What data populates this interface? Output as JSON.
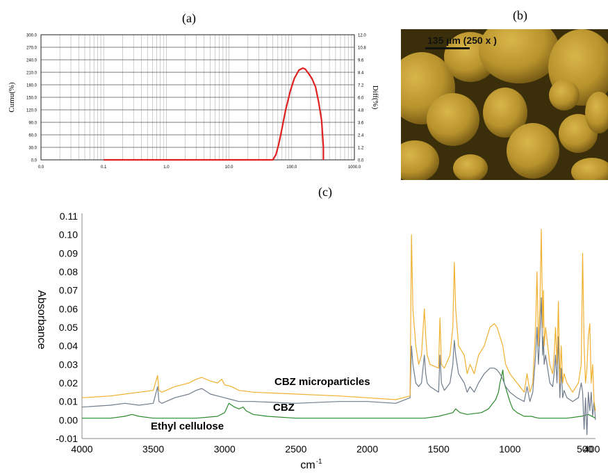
{
  "panels": {
    "a": "(a)",
    "b": "(b)",
    "c": "(c)"
  },
  "micrograph": {
    "scale_label": "135 µm (250 x )"
  },
  "colors": {
    "psd_curve": "#e02020",
    "cbz_micro": "#f0b030",
    "cbz": "#707c8c",
    "ethyl_cellulose": "#2a8a2a"
  },
  "chart_data": [
    {
      "type": "line",
      "title": "",
      "xlabel": "",
      "ylabel": "Cumu(%)",
      "ylabel_right": "Diff(%)",
      "x_scale": "log",
      "x_ticks": [
        "0.0",
        "0.1",
        "1.0",
        "10.0",
        "100.0",
        "1000.0"
      ],
      "y_ticks_left": [
        "0.0",
        "30.0",
        "60.0",
        "90.0",
        "120.0",
        "150.0",
        "180.0",
        "210.0",
        "240.0",
        "270.0",
        "300.0"
      ],
      "y_ticks_right": [
        "0.0",
        "1.2",
        "2.4",
        "3.6",
        "4.8",
        "6.0",
        "7.2",
        "8.4",
        "9.6",
        "10.8",
        "12.0"
      ],
      "ylim_right": [
        0,
        12
      ],
      "grid": true,
      "series": [
        {
          "axis": "right",
          "x": [
            0.1,
            1,
            10,
            50,
            56,
            62,
            70,
            80,
            95,
            110,
            130,
            150,
            165,
            185,
            210,
            240,
            270,
            300,
            320,
            320
          ],
          "y": [
            0,
            0,
            0,
            0,
            0.5,
            1.5,
            3.0,
            4.8,
            6.6,
            7.8,
            8.6,
            8.8,
            8.7,
            8.3,
            7.8,
            7.0,
            5.5,
            3.8,
            1.2,
            0
          ]
        }
      ]
    },
    {
      "type": "line",
      "title": "",
      "xlabel": "cm-1",
      "ylabel": "Absorbance",
      "xlim": [
        4000,
        400
      ],
      "ylim": [
        -0.01,
        0.11
      ],
      "x_ticks": [
        "4000",
        "3500",
        "3000",
        "2500",
        "2000",
        "1500",
        "1000",
        "500",
        "400"
      ],
      "y_ticks": [
        "-0.01",
        "0.00",
        "0.01",
        "0.02",
        "0.03",
        "0.04",
        "0.05",
        "0.06",
        "0.07",
        "0.08",
        "0.09",
        "0.10",
        "0.11"
      ],
      "annotations": [
        "CBZ microparticles",
        "CBZ",
        "Ethyl cellulose"
      ],
      "series": [
        {
          "name": "CBZ microparticles",
          "x": [
            4000,
            3800,
            3700,
            3600,
            3500,
            3470,
            3460,
            3440,
            3350,
            3300,
            3250,
            3200,
            3160,
            3100,
            3050,
            3020,
            3000,
            2950,
            2900,
            2800,
            2500,
            2200,
            2000,
            1800,
            1700,
            1690,
            1680,
            1660,
            1640,
            1620,
            1600,
            1590,
            1580,
            1560,
            1500,
            1490,
            1480,
            1460,
            1420,
            1400,
            1390,
            1380,
            1360,
            1320,
            1300,
            1280,
            1250,
            1220,
            1180,
            1140,
            1110,
            1090,
            1070,
            1050,
            1030,
            1000,
            950,
            900,
            880,
            860,
            840,
            820,
            810,
            800,
            790,
            780,
            770,
            765,
            760,
            750,
            720,
            700,
            690,
            680,
            670,
            660,
            650,
            640,
            630,
            620,
            600,
            560,
            520,
            500,
            490,
            480,
            470,
            460,
            450,
            440,
            430,
            420,
            410,
            400
          ],
          "y": [
            0.012,
            0.013,
            0.014,
            0.015,
            0.016,
            0.024,
            0.016,
            0.015,
            0.018,
            0.019,
            0.02,
            0.022,
            0.023,
            0.021,
            0.02,
            0.022,
            0.019,
            0.018,
            0.016,
            0.015,
            0.014,
            0.013,
            0.012,
            0.011,
            0.013,
            0.1,
            0.06,
            0.04,
            0.03,
            0.035,
            0.06,
            0.045,
            0.035,
            0.03,
            0.028,
            0.055,
            0.03,
            0.028,
            0.035,
            0.05,
            0.085,
            0.06,
            0.04,
            0.035,
            0.025,
            0.03,
            0.025,
            0.035,
            0.04,
            0.05,
            0.052,
            0.05,
            0.045,
            0.04,
            0.03,
            0.025,
            0.02,
            0.015,
            0.025,
            0.015,
            0.02,
            0.05,
            0.08,
            0.04,
            0.06,
            0.103,
            0.05,
            0.07,
            0.04,
            0.05,
            0.03,
            0.025,
            0.035,
            0.05,
            0.03,
            0.064,
            0.02,
            0.04,
            0.02,
            0.025,
            0.02,
            0.015,
            0.02,
            0.03,
            0.09,
            0.04,
            0.02,
            0.028,
            0.045,
            0.052,
            0.02,
            0.03,
            0.01,
            0.005
          ]
        },
        {
          "name": "CBZ",
          "x": [
            4000,
            3800,
            3700,
            3600,
            3500,
            3470,
            3460,
            3440,
            3350,
            3300,
            3250,
            3200,
            3160,
            3100,
            3050,
            3000,
            2950,
            2900,
            2800,
            2500,
            2200,
            2000,
            1800,
            1700,
            1690,
            1680,
            1660,
            1640,
            1620,
            1600,
            1590,
            1580,
            1560,
            1500,
            1490,
            1480,
            1460,
            1420,
            1400,
            1390,
            1380,
            1360,
            1320,
            1300,
            1280,
            1250,
            1220,
            1180,
            1140,
            1110,
            1090,
            1070,
            1050,
            1030,
            1000,
            950,
            900,
            880,
            860,
            840,
            820,
            810,
            800,
            790,
            780,
            770,
            765,
            760,
            750,
            720,
            700,
            690,
            680,
            670,
            660,
            650,
            640,
            630,
            620,
            600,
            560,
            520,
            500,
            490,
            480,
            470,
            460,
            450,
            440,
            430,
            420,
            410,
            400
          ],
          "y": [
            0.007,
            0.008,
            0.009,
            0.008,
            0.009,
            0.018,
            0.01,
            0.009,
            0.012,
            0.013,
            0.014,
            0.016,
            0.017,
            0.014,
            0.013,
            0.012,
            0.011,
            0.01,
            0.01,
            0.009,
            0.01,
            0.01,
            0.009,
            0.012,
            0.04,
            0.03,
            0.02,
            0.018,
            0.02,
            0.035,
            0.025,
            0.02,
            0.018,
            0.015,
            0.035,
            0.02,
            0.016,
            0.02,
            0.03,
            0.043,
            0.035,
            0.025,
            0.02,
            0.015,
            0.018,
            0.015,
            0.02,
            0.025,
            0.028,
            0.028,
            0.027,
            0.025,
            0.022,
            0.018,
            0.015,
            0.012,
            0.01,
            0.018,
            0.01,
            0.015,
            0.035,
            0.05,
            0.03,
            0.045,
            0.066,
            0.035,
            0.045,
            0.03,
            0.035,
            0.02,
            0.018,
            0.025,
            0.035,
            0.02,
            0.045,
            0.012,
            0.028,
            0.012,
            0.016,
            0.012,
            0.01,
            0.012,
            0.02,
            0.015,
            -0.005,
            0.012,
            -0.008,
            0.015,
            0.005,
            0.015,
            0.002,
            0.01,
            0.0
          ]
        },
        {
          "name": "Ethyl cellulose",
          "x": [
            4000,
            3800,
            3700,
            3650,
            3600,
            3500,
            3400,
            3200,
            3050,
            3000,
            2970,
            2950,
            2930,
            2900,
            2870,
            2850,
            2800,
            2700,
            2500,
            2000,
            1800,
            1700,
            1600,
            1500,
            1450,
            1400,
            1380,
            1350,
            1300,
            1200,
            1150,
            1120,
            1100,
            1080,
            1070,
            1060,
            1050,
            1040,
            1020,
            1000,
            980,
            950,
            900,
            850,
            800,
            750,
            700,
            600,
            500,
            450,
            400
          ],
          "y": [
            0.001,
            0.001,
            0.002,
            0.003,
            0.002,
            0.001,
            0.001,
            0.001,
            0.002,
            0.004,
            0.009,
            0.008,
            0.007,
            0.006,
            0.007,
            0.005,
            0.003,
            0.002,
            0.001,
            0.001,
            0.001,
            0.001,
            0.001,
            0.002,
            0.003,
            0.004,
            0.006,
            0.004,
            0.003,
            0.004,
            0.006,
            0.009,
            0.011,
            0.015,
            0.02,
            0.023,
            0.027,
            0.02,
            0.015,
            0.01,
            0.006,
            0.004,
            0.002,
            0.002,
            0.001,
            0.001,
            0.001,
            0.001,
            0.002,
            0.003,
            0.001
          ]
        }
      ]
    }
  ]
}
